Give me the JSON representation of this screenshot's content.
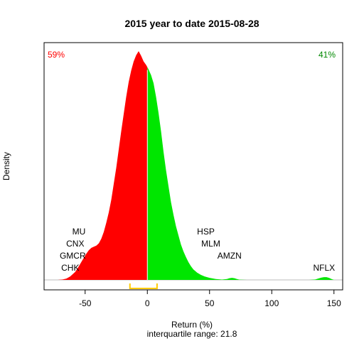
{
  "chart_data": {
    "type": "area",
    "title": "2015  year to date 2015-08-28",
    "xlabel": "Return (%)",
    "ylabel": "Density",
    "subtitle": "interquartile range: 21.8",
    "xlim": [
      -83,
      157
    ],
    "xticks": [
      -50,
      0,
      50,
      100,
      150
    ],
    "grid": false,
    "legend": "none",
    "negative_share_label": "59%",
    "positive_share_label": "41%",
    "colors": {
      "negative": "#ff0000",
      "positive": "#00e600",
      "iqr": "#ffcc00",
      "divider": "#ffffff"
    },
    "iqr": {
      "q1": -14,
      "q3": 7.8
    },
    "density": {
      "x": [
        -72,
        -68,
        -65,
        -62,
        -58,
        -55,
        -52,
        -49,
        -47,
        -45,
        -43,
        -41,
        -39,
        -37,
        -35,
        -33,
        -31,
        -29,
        -27,
        -25,
        -23,
        -21,
        -19,
        -17,
        -15,
        -13,
        -11,
        -9,
        -7,
        -5,
        -3,
        -1,
        0,
        1,
        3,
        5,
        7,
        9,
        11,
        13,
        15,
        17,
        19,
        21,
        23,
        25,
        27,
        29,
        31,
        33,
        35,
        37,
        40,
        43,
        46,
        50,
        55,
        60,
        64,
        66,
        68,
        70,
        72,
        74,
        80,
        90,
        100,
        110,
        120,
        130,
        135,
        138,
        140,
        142,
        144,
        146,
        148,
        150
      ],
      "y": [
        0.0,
        0.2,
        0.6,
        1.5,
        3.5,
        6.0,
        8.8,
        11.5,
        13.0,
        14.0,
        14.5,
        15.0,
        16.0,
        18.0,
        21.0,
        25.0,
        29.5,
        35.0,
        42.0,
        49.0,
        57.0,
        65.0,
        72.5,
        80.0,
        86.5,
        91.5,
        95.5,
        98.2,
        100.0,
        98.0,
        95.5,
        94.0,
        93.0,
        92.0,
        89.5,
        86.0,
        80.0,
        73.0,
        65.0,
        56.0,
        48.0,
        41.0,
        34.0,
        28.5,
        23.5,
        19.5,
        15.5,
        12.5,
        10.0,
        7.8,
        6.0,
        4.6,
        3.2,
        2.2,
        1.5,
        0.9,
        0.4,
        0.15,
        0.4,
        0.75,
        0.9,
        0.75,
        0.4,
        0.1,
        0.0,
        0.0,
        0.0,
        0.0,
        0.0,
        0.0,
        0.2,
        0.7,
        1.0,
        1.2,
        1.2,
        0.9,
        0.4,
        0.0
      ]
    },
    "annotations": [
      {
        "label": "MU",
        "x": -55,
        "level": 4
      },
      {
        "label": "CNX",
        "x": -58,
        "level": 3
      },
      {
        "label": "GMCR",
        "x": -60,
        "level": 2
      },
      {
        "label": "CHK",
        "x": -62,
        "level": 1
      },
      {
        "label": "HSP",
        "x": 47,
        "level": 4
      },
      {
        "label": "MLM",
        "x": 51,
        "level": 3
      },
      {
        "label": "AMZN",
        "x": 66,
        "level": 2
      },
      {
        "label": "NFLX",
        "x": 142,
        "level": 1
      }
    ]
  }
}
